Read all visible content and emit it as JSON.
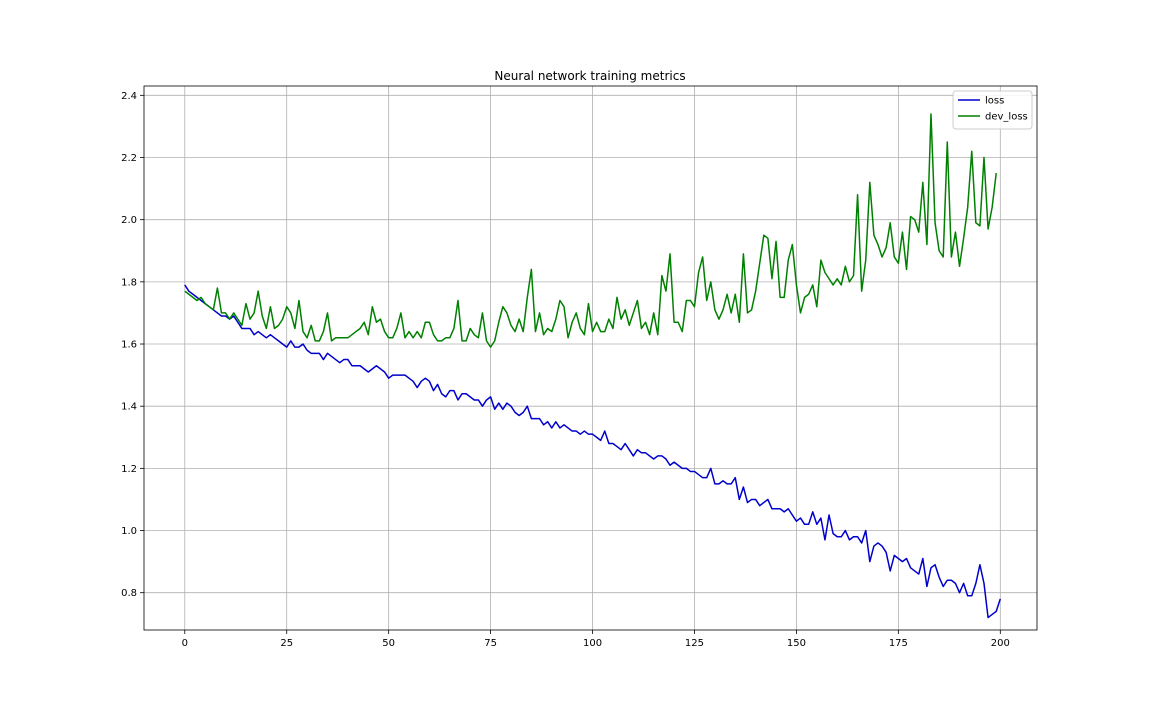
{
  "chart_data": {
    "type": "line",
    "title": "Neural network training metrics",
    "xlabel": "",
    "ylabel": "",
    "xlim": [
      -10,
      209
    ],
    "ylim": [
      0.68,
      2.43
    ],
    "xticks": [
      0,
      25,
      50,
      75,
      100,
      125,
      150,
      175,
      200
    ],
    "yticks": [
      0.8,
      1.0,
      1.2,
      1.4,
      1.6,
      1.8,
      2.0,
      2.2,
      2.4
    ],
    "grid": true,
    "legend_position": "top-right",
    "series": [
      {
        "name": "loss",
        "color": "#0000cc",
        "x_start": 0,
        "values": [
          1.79,
          1.77,
          1.76,
          1.75,
          1.74,
          1.73,
          1.72,
          1.71,
          1.7,
          1.69,
          1.69,
          1.68,
          1.69,
          1.67,
          1.65,
          1.65,
          1.65,
          1.63,
          1.64,
          1.63,
          1.62,
          1.63,
          1.62,
          1.61,
          1.6,
          1.59,
          1.61,
          1.59,
          1.59,
          1.6,
          1.58,
          1.57,
          1.57,
          1.57,
          1.55,
          1.57,
          1.56,
          1.55,
          1.54,
          1.55,
          1.55,
          1.53,
          1.53,
          1.53,
          1.52,
          1.51,
          1.52,
          1.53,
          1.52,
          1.51,
          1.49,
          1.5,
          1.5,
          1.5,
          1.5,
          1.49,
          1.48,
          1.46,
          1.48,
          1.49,
          1.48,
          1.45,
          1.47,
          1.44,
          1.43,
          1.45,
          1.45,
          1.42,
          1.44,
          1.44,
          1.43,
          1.42,
          1.42,
          1.4,
          1.42,
          1.43,
          1.39,
          1.41,
          1.39,
          1.41,
          1.4,
          1.38,
          1.37,
          1.38,
          1.4,
          1.36,
          1.36,
          1.36,
          1.34,
          1.35,
          1.33,
          1.35,
          1.33,
          1.34,
          1.33,
          1.32,
          1.32,
          1.31,
          1.32,
          1.31,
          1.31,
          1.3,
          1.29,
          1.32,
          1.28,
          1.28,
          1.27,
          1.26,
          1.28,
          1.26,
          1.24,
          1.26,
          1.25,
          1.25,
          1.24,
          1.23,
          1.24,
          1.24,
          1.23,
          1.21,
          1.22,
          1.21,
          1.2,
          1.2,
          1.19,
          1.19,
          1.18,
          1.17,
          1.17,
          1.2,
          1.15,
          1.15,
          1.16,
          1.15,
          1.15,
          1.17,
          1.1,
          1.14,
          1.09,
          1.1,
          1.1,
          1.08,
          1.09,
          1.1,
          1.07,
          1.07,
          1.07,
          1.06,
          1.07,
          1.05,
          1.03,
          1.04,
          1.02,
          1.02,
          1.06,
          1.02,
          1.04,
          0.97,
          1.05,
          0.99,
          0.98,
          0.98,
          1.0,
          0.97,
          0.98,
          0.98,
          0.96,
          1.0,
          0.9,
          0.95,
          0.96,
          0.95,
          0.93,
          0.87,
          0.92,
          0.91,
          0.9,
          0.91,
          0.88,
          0.87,
          0.86,
          0.91,
          0.82,
          0.88,
          0.89,
          0.85,
          0.82,
          0.84,
          0.84,
          0.83,
          0.8,
          0.83,
          0.79,
          0.79,
          0.83,
          0.89,
          0.83,
          0.72,
          0.73,
          0.74,
          0.78
        ]
      },
      {
        "name": "dev_loss",
        "color": "#008000",
        "x_start": 0,
        "values": [
          1.77,
          1.76,
          1.75,
          1.74,
          1.75,
          1.73,
          1.72,
          1.71,
          1.78,
          1.7,
          1.7,
          1.68,
          1.7,
          1.68,
          1.66,
          1.73,
          1.68,
          1.7,
          1.77,
          1.69,
          1.65,
          1.72,
          1.65,
          1.66,
          1.68,
          1.72,
          1.7,
          1.65,
          1.74,
          1.64,
          1.62,
          1.66,
          1.61,
          1.61,
          1.64,
          1.7,
          1.61,
          1.62,
          1.62,
          1.62,
          1.62,
          1.63,
          1.64,
          1.65,
          1.67,
          1.63,
          1.72,
          1.67,
          1.68,
          1.64,
          1.62,
          1.62,
          1.65,
          1.7,
          1.62,
          1.64,
          1.62,
          1.64,
          1.62,
          1.67,
          1.67,
          1.63,
          1.61,
          1.61,
          1.62,
          1.62,
          1.65,
          1.74,
          1.61,
          1.61,
          1.65,
          1.63,
          1.62,
          1.7,
          1.61,
          1.59,
          1.61,
          1.67,
          1.72,
          1.7,
          1.66,
          1.64,
          1.68,
          1.64,
          1.75,
          1.84,
          1.64,
          1.7,
          1.63,
          1.65,
          1.64,
          1.68,
          1.74,
          1.72,
          1.62,
          1.67,
          1.7,
          1.65,
          1.63,
          1.73,
          1.64,
          1.67,
          1.64,
          1.64,
          1.68,
          1.65,
          1.75,
          1.68,
          1.71,
          1.66,
          1.7,
          1.74,
          1.65,
          1.67,
          1.63,
          1.7,
          1.63,
          1.82,
          1.77,
          1.89,
          1.67,
          1.67,
          1.64,
          1.74,
          1.74,
          1.72,
          1.83,
          1.88,
          1.74,
          1.8,
          1.71,
          1.68,
          1.71,
          1.76,
          1.7,
          1.76,
          1.67,
          1.89,
          1.7,
          1.71,
          1.77,
          1.86,
          1.95,
          1.94,
          1.81,
          1.93,
          1.75,
          1.75,
          1.87,
          1.92,
          1.79,
          1.7,
          1.75,
          1.76,
          1.79,
          1.72,
          1.87,
          1.83,
          1.81,
          1.79,
          1.81,
          1.79,
          1.85,
          1.8,
          1.82,
          2.08,
          1.77,
          1.87,
          2.12,
          1.95,
          1.92,
          1.88,
          1.91,
          1.99,
          1.88,
          1.86,
          1.96,
          1.84,
          2.01,
          2.0,
          1.96,
          2.12,
          1.92,
          2.34,
          1.99,
          1.9,
          1.88,
          2.25,
          1.88,
          1.96,
          1.85,
          1.94,
          2.04,
          2.22,
          1.99,
          1.98,
          2.2,
          1.97,
          2.04,
          2.15
        ]
      }
    ]
  }
}
